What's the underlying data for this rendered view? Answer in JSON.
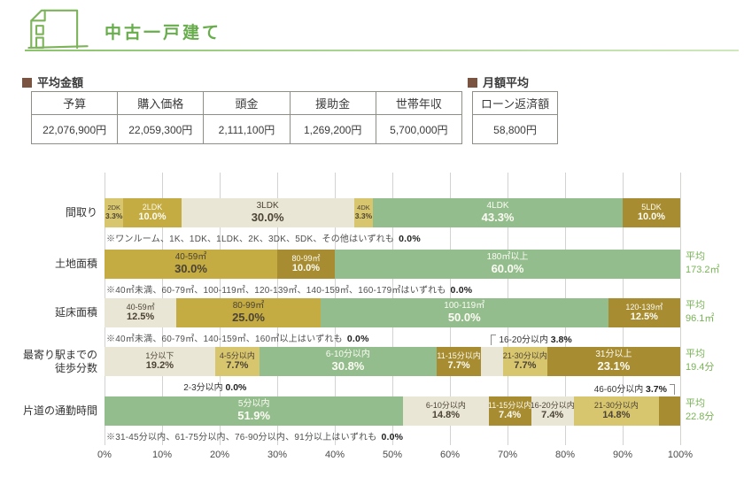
{
  "header": {
    "title": "中古一戸建て"
  },
  "sections": {
    "avg_amount": {
      "title": "平均金額",
      "columns": [
        "予算",
        "購入価格",
        "頭金",
        "援助金",
        "世帯年収"
      ],
      "values": [
        "22,076,900円",
        "22,059,300円",
        "2,111,100円",
        "1,269,200円",
        "5,700,000円"
      ]
    },
    "monthly_avg": {
      "title": "月額平均",
      "columns": [
        "ローン返済額"
      ],
      "values": [
        "58,800円"
      ]
    }
  },
  "chart_data": {
    "type": "bar",
    "subtype": "horizontal-stacked-100pct",
    "xlim": [
      0,
      100
    ],
    "x_ticks": [
      "0%",
      "10%",
      "20%",
      "30%",
      "40%",
      "50%",
      "60%",
      "70%",
      "80%",
      "90%",
      "100%"
    ],
    "palette": {
      "cream": "#eae6d6",
      "khaki": "#d8c66f",
      "gold": "#c4ab42",
      "dark": "#a78c31",
      "green": "#94bd8d"
    },
    "rows": [
      {
        "label": [
          "間取り"
        ],
        "segments": [
          {
            "name": "2DK",
            "value": 3.3,
            "color": "khaki",
            "text": "dark"
          },
          {
            "name": "2LDK",
            "value": 10.0,
            "color": "gold",
            "text": "light"
          },
          {
            "name": "3LDK",
            "value": 30.0,
            "color": "cream",
            "text": "dark"
          },
          {
            "name": "4DK",
            "value": 3.3,
            "color": "khaki",
            "text": "dark"
          },
          {
            "name": "4LDK",
            "value": 43.3,
            "color": "green",
            "text": "light"
          },
          {
            "name": "5LDK",
            "value": 10.0,
            "color": "dark",
            "text": "light"
          }
        ],
        "footnote": "※ワンルーム、1K、1DK、1LDK、2K、3DK、5DK、その他はいずれも 0.0%"
      },
      {
        "label": [
          "土地面積"
        ],
        "segments": [
          {
            "name": "40-59㎡",
            "value": 30.0,
            "color": "gold",
            "text": "dark"
          },
          {
            "name": "80-99㎡",
            "value": 10.0,
            "color": "dark",
            "text": "light"
          },
          {
            "name": "180㎡以上",
            "value": 60.0,
            "color": "green",
            "text": "light"
          }
        ],
        "footnote": "※40㎡未満、60-79㎡、100-119㎡、120-139㎡、140-159㎡、160-179㎡はいずれも 0.0%",
        "average": {
          "label": "平均",
          "value": "173.2㎡"
        }
      },
      {
        "label": [
          "延床面積"
        ],
        "segments": [
          {
            "name": "40-59㎡",
            "value": 12.5,
            "color": "cream",
            "text": "dark"
          },
          {
            "name": "80-99㎡",
            "value": 25.0,
            "color": "gold",
            "text": "dark"
          },
          {
            "name": "100-119㎡",
            "value": 50.0,
            "color": "green",
            "text": "light"
          },
          {
            "name": "120-139㎡",
            "value": 12.5,
            "color": "dark",
            "text": "light"
          }
        ],
        "footnote": "※40㎡未満、60-79㎡、140-159㎡、160㎡以上はいずれも 0.0%",
        "average": {
          "label": "平均",
          "value": "96.1㎡"
        }
      },
      {
        "label": [
          "最寄り駅までの",
          "徒歩分数"
        ],
        "segments": [
          {
            "name": "1分以下",
            "value": 19.2,
            "color": "cream",
            "text": "dark"
          },
          {
            "name": "4-5分以内",
            "value": 7.7,
            "color": "khaki",
            "text": "dark"
          },
          {
            "name": "6-10分以内",
            "value": 30.8,
            "color": "green",
            "text": "light"
          },
          {
            "name": "11-15分以内",
            "value": 7.7,
            "color": "dark",
            "text": "light"
          },
          {
            "name": "16-20分以内",
            "value": 3.8,
            "color": "cream",
            "text": "dark",
            "hide_label": true
          },
          {
            "name": "21-30分以内",
            "value": 7.7,
            "color": "khaki",
            "text": "dark"
          },
          {
            "name": "31分以上",
            "value": 23.1,
            "color": "dark",
            "text": "light"
          }
        ],
        "callouts": [
          {
            "position": "above",
            "side": "right",
            "seg": 4,
            "label": "16-20分以内",
            "value": "3.8%"
          },
          {
            "position": "below",
            "at_pct": 19.2,
            "label": "2-3分以内",
            "value": "0.0%"
          }
        ],
        "average": {
          "label": "平均",
          "value": "19.4分"
        }
      },
      {
        "label": [
          "片道の通勤時間"
        ],
        "segments": [
          {
            "name": "5分以内",
            "value": 51.9,
            "color": "green",
            "text": "light"
          },
          {
            "name": "6-10分以内",
            "value": 14.8,
            "color": "cream",
            "text": "dark"
          },
          {
            "name": "11-15分以内",
            "value": 7.4,
            "color": "dark",
            "text": "light"
          },
          {
            "name": "16-20分以内",
            "value": 7.4,
            "color": "cream",
            "text": "dark"
          },
          {
            "name": "21-30分以内",
            "value": 14.8,
            "color": "khaki",
            "text": "dark"
          },
          {
            "name": "46-60分以内",
            "value": 3.7,
            "color": "dark",
            "text": "light",
            "hide_label": true
          }
        ],
        "callouts": [
          {
            "position": "above",
            "side": "left",
            "seg": 5,
            "label": "46-60分以内",
            "value": "3.7%"
          }
        ],
        "footnote": "※31-45分以内、61-75分以内、76-90分以内、91分以上はいずれも 0.0%",
        "average": {
          "label": "平均",
          "value": "22.8分"
        }
      }
    ]
  }
}
